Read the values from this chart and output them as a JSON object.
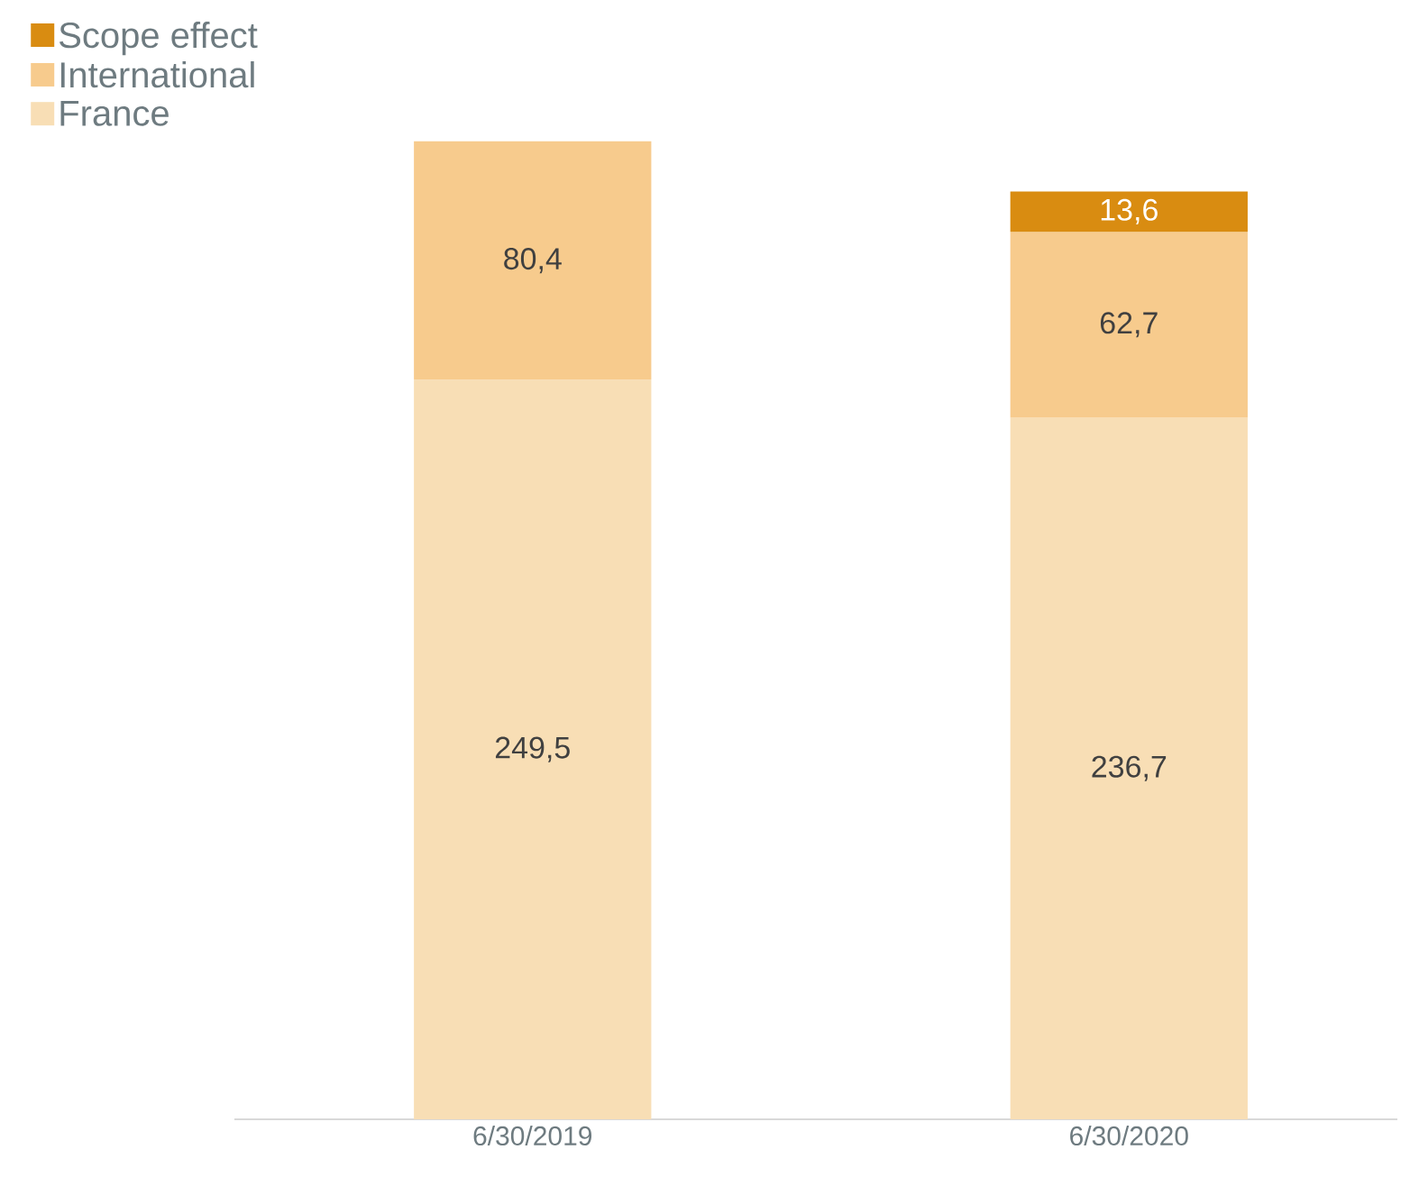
{
  "chart_data": {
    "type": "bar",
    "stacked": true,
    "categories": [
      "6/30/2019",
      "6/30/2020"
    ],
    "series": [
      {
        "name": "France",
        "color": "#f8deb5",
        "values": [
          249.5,
          236.7
        ],
        "value_labels": [
          "249,5",
          "236,7"
        ]
      },
      {
        "name": "International",
        "color": "#f7cb8d",
        "values": [
          80.4,
          62.7
        ],
        "value_labels": [
          "80,4",
          "62,7"
        ]
      },
      {
        "name": "Scope effect",
        "color": "#d98c11",
        "values": [
          null,
          13.6
        ],
        "value_labels": [
          null,
          "13,6"
        ]
      }
    ],
    "legend": "top left"
  }
}
